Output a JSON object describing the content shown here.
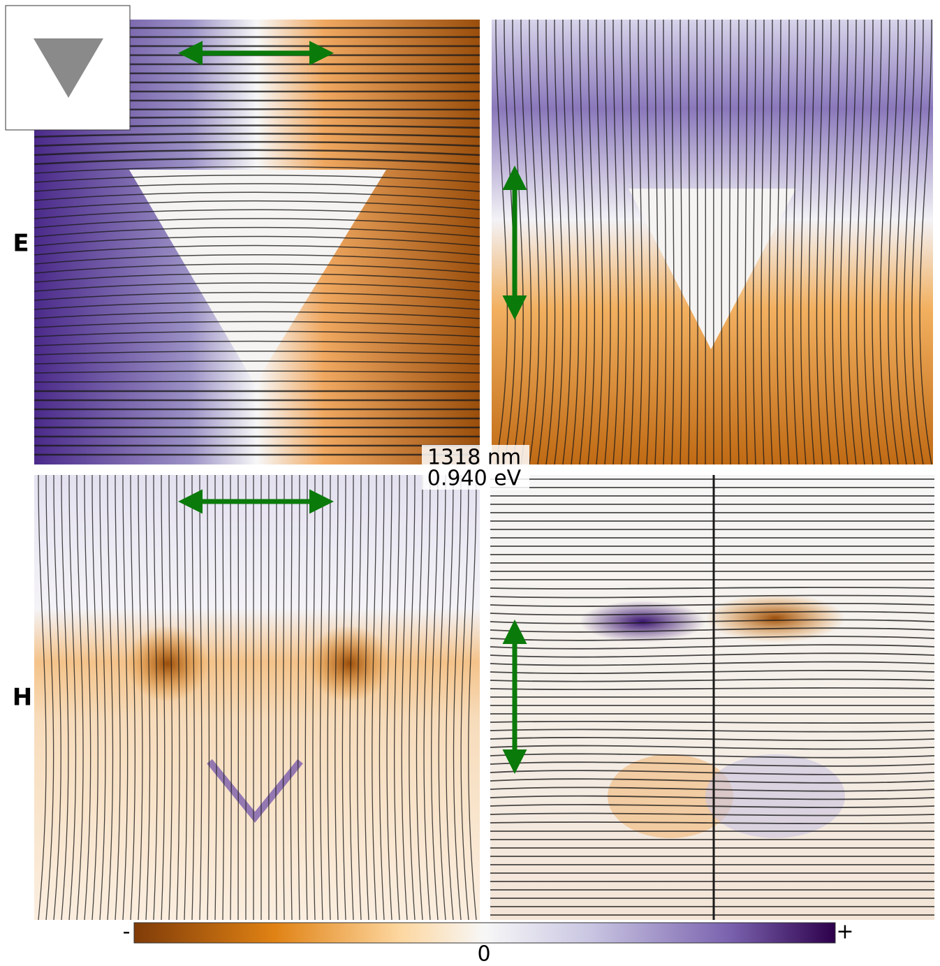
{
  "rows": [
    {
      "label": "E"
    },
    {
      "label": "H"
    }
  ],
  "wavelength": "1318 nm",
  "energy": "0.940 eV",
  "colorbar": {
    "min_label": "-",
    "zero_label": "0",
    "max_label": "+"
  }
}
